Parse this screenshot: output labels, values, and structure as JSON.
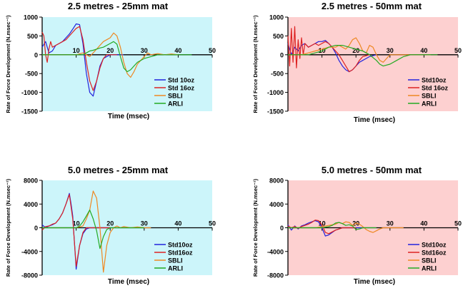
{
  "figure": {
    "ylabel": "Rate of Force Development (N.msec⁻¹)"
  },
  "chart_data": [
    {
      "type": "line",
      "title": "2.5 metres - 25mm mat",
      "xlabel": "Time (msec)",
      "ylabel": "Rate of Force Development (N.msec⁻¹)",
      "xlim": [
        0,
        50
      ],
      "ylim": [
        -1500,
        1000
      ],
      "xticks": [
        0,
        10,
        20,
        30,
        40,
        50
      ],
      "yticks": [
        -1500,
        -1000,
        -500,
        0,
        500,
        1000
      ],
      "background": "#ccf5fa",
      "legend_position": "bottom-right",
      "series": [
        {
          "name": "Std 10oz",
          "color": "#2222dd",
          "x": [
            0,
            1,
            2,
            3,
            4,
            5,
            6,
            7,
            8,
            9,
            10,
            11,
            12,
            13,
            14,
            15,
            16,
            17,
            18,
            19,
            20,
            22,
            24
          ],
          "y": [
            200,
            350,
            50,
            100,
            250,
            300,
            350,
            450,
            550,
            680,
            820,
            800,
            300,
            -500,
            -1000,
            -1100,
            -700,
            -300,
            -100,
            -50,
            0,
            0,
            0
          ]
        },
        {
          "name": "Std 16oz",
          "color": "#dd2222",
          "x": [
            0,
            0.5,
            1,
            1.5,
            2,
            2.5,
            3,
            4,
            5,
            6,
            7,
            8,
            9,
            10,
            11,
            12,
            13,
            14,
            15,
            16,
            17,
            18,
            19,
            20,
            22
          ],
          "y": [
            600,
            500,
            0,
            -200,
            150,
            350,
            200,
            250,
            300,
            350,
            400,
            500,
            600,
            700,
            750,
            400,
            -200,
            -700,
            -950,
            -700,
            -350,
            -100,
            0,
            0,
            0
          ]
        },
        {
          "name": "SBLI",
          "color": "#ee8822",
          "x": [
            0,
            2,
            4,
            6,
            8,
            10,
            12,
            13,
            14,
            15,
            16,
            17,
            18,
            19,
            20,
            21,
            22,
            23,
            24,
            25,
            26,
            27,
            28,
            29,
            30,
            31,
            32,
            34,
            36,
            38,
            40
          ],
          "y": [
            0,
            0,
            0,
            0,
            0,
            0,
            50,
            0,
            -50,
            50,
            150,
            250,
            350,
            400,
            450,
            580,
            500,
            200,
            -200,
            -500,
            -600,
            -450,
            -250,
            -150,
            -50,
            50,
            0,
            30,
            0,
            20,
            0
          ]
        },
        {
          "name": "ARLI",
          "color": "#22aa22",
          "x": [
            0,
            2,
            4,
            6,
            8,
            10,
            12,
            13,
            14,
            15,
            16,
            17,
            18,
            19,
            20,
            21,
            22,
            23,
            24,
            25,
            26,
            27,
            28,
            30,
            32,
            34,
            36,
            38,
            40,
            42,
            44
          ],
          "y": [
            0,
            0,
            0,
            0,
            0,
            0,
            0,
            50,
            100,
            120,
            150,
            180,
            200,
            250,
            300,
            350,
            280,
            -50,
            -350,
            -450,
            -400,
            -300,
            -200,
            -100,
            -50,
            0,
            0,
            0,
            0,
            0,
            0
          ]
        }
      ]
    },
    {
      "type": "line",
      "title": "2.5 metres - 50mm mat",
      "xlabel": "Time (msec)",
      "ylabel": "Rate of Force Development (N.msec⁻¹)",
      "xlim": [
        0,
        50
      ],
      "ylim": [
        -1500,
        1000
      ],
      "xticks": [
        0,
        10,
        20,
        30,
        40,
        50
      ],
      "yticks": [
        -1500,
        -1000,
        -500,
        0,
        500,
        1000
      ],
      "background": "#fdd0d0",
      "legend_position": "bottom-right",
      "series": [
        {
          "name": "Std10oz",
          "color": "#2222dd",
          "x": [
            0,
            1,
            2,
            3,
            4,
            5,
            6,
            7,
            8,
            9,
            10,
            11,
            12,
            13,
            14,
            15,
            16,
            17,
            18,
            19,
            20,
            21,
            22,
            24,
            26
          ],
          "y": [
            300,
            0,
            200,
            100,
            250,
            300,
            200,
            250,
            300,
            350,
            350,
            380,
            300,
            200,
            50,
            -150,
            -300,
            -400,
            -450,
            -400,
            -300,
            -200,
            -150,
            -50,
            0
          ]
        },
        {
          "name": "Std 16oz",
          "color": "#dd2222",
          "x": [
            0,
            0.5,
            1,
            1.5,
            2,
            2.5,
            3,
            3.5,
            4,
            4.5,
            5,
            6,
            7,
            8,
            9,
            10,
            11,
            12,
            13,
            14,
            15,
            16,
            17,
            18,
            19,
            20,
            21,
            22,
            24
          ],
          "y": [
            500,
            -300,
            700,
            -200,
            750,
            -350,
            400,
            -100,
            450,
            0,
            300,
            200,
            250,
            300,
            250,
            300,
            350,
            300,
            200,
            100,
            0,
            -150,
            -300,
            -450,
            -400,
            -300,
            -150,
            -50,
            0
          ]
        },
        {
          "name": "SBLI",
          "color": "#ee8822",
          "x": [
            0,
            2,
            4,
            6,
            8,
            10,
            12,
            14,
            15,
            16,
            17,
            18,
            19,
            20,
            21,
            22,
            23,
            24,
            25,
            26,
            27,
            28,
            29,
            30,
            32,
            34,
            36,
            38,
            40,
            42
          ],
          "y": [
            0,
            0,
            0,
            50,
            100,
            150,
            200,
            200,
            250,
            200,
            150,
            250,
            400,
            450,
            300,
            100,
            50,
            250,
            200,
            0,
            -150,
            -200,
            -100,
            0,
            0,
            0,
            0,
            0,
            0,
            0
          ]
        },
        {
          "name": "ARLI",
          "color": "#22aa22",
          "x": [
            0,
            2,
            4,
            6,
            8,
            10,
            12,
            14,
            16,
            18,
            20,
            22,
            24,
            26,
            27,
            28,
            30,
            32,
            34,
            36,
            38,
            40,
            42,
            44
          ],
          "y": [
            0,
            0,
            0,
            0,
            50,
            100,
            200,
            250,
            250,
            200,
            150,
            100,
            0,
            -150,
            -250,
            -300,
            -250,
            -150,
            -50,
            0,
            0,
            0,
            0,
            0
          ]
        }
      ]
    },
    {
      "type": "line",
      "title": "5.0 metres - 25mm mat",
      "xlabel": "Time (msec)",
      "ylabel": "Rate of Force Development (N.msec⁻¹)",
      "xlim": [
        0,
        50
      ],
      "ylim": [
        -8000,
        8000
      ],
      "xticks": [
        0,
        10,
        20,
        30,
        40,
        50
      ],
      "yticks": [
        -8000,
        -4000,
        0,
        4000,
        8000
      ],
      "background": "#ccf5fa",
      "legend_position": "bottom-right",
      "series": [
        {
          "name": "Std10oz",
          "color": "#2222dd",
          "x": [
            0,
            1,
            2,
            3,
            4,
            5,
            6,
            7,
            8,
            8.5,
            9,
            10,
            11,
            12,
            13,
            14,
            15,
            16,
            18,
            20
          ],
          "y": [
            500,
            0,
            300,
            500,
            800,
            1500,
            2500,
            4000,
            5800,
            4000,
            2000,
            -7000,
            -3000,
            -1000,
            -200,
            0,
            0,
            0,
            0,
            0
          ]
        },
        {
          "name": "Std16oz",
          "color": "#dd2222",
          "x": [
            0,
            1,
            2,
            3,
            4,
            5,
            6,
            7,
            8,
            8.5,
            9,
            10,
            11,
            12,
            13,
            14,
            15,
            16,
            18,
            20
          ],
          "y": [
            -400,
            200,
            300,
            600,
            800,
            1500,
            2500,
            4000,
            5600,
            3500,
            1500,
            -6500,
            -3000,
            -800,
            0,
            0,
            0,
            0,
            0,
            0
          ]
        },
        {
          "name": "SBLI",
          "color": "#ee8822",
          "x": [
            0,
            4,
            8,
            10,
            12,
            13,
            14,
            15,
            16,
            17,
            18,
            19,
            20,
            21,
            22,
            23,
            24,
            26,
            28,
            30,
            32
          ],
          "y": [
            0,
            0,
            0,
            0,
            300,
            1500,
            3000,
            6200,
            5000,
            0,
            -7500,
            -3000,
            -800,
            0,
            300,
            0,
            200,
            0,
            150,
            0,
            0
          ]
        },
        {
          "name": "ARLI",
          "color": "#22aa22",
          "x": [
            0,
            4,
            8,
            10,
            11,
            12,
            13,
            14,
            15,
            16,
            17,
            18,
            19,
            20,
            22,
            24,
            26,
            28,
            30
          ],
          "y": [
            0,
            0,
            0,
            0,
            300,
            1000,
            2000,
            3000,
            1500,
            -500,
            -3500,
            -1500,
            -300,
            0,
            0,
            0,
            0,
            0,
            0
          ]
        }
      ]
    },
    {
      "type": "line",
      "title": "5.0 metres - 50mm mat",
      "xlabel": "Time (msec)",
      "ylabel": "Rate of Force Development (N.msec⁻¹)",
      "xlim": [
        0,
        50
      ],
      "ylim": [
        -8000,
        8000
      ],
      "xticks": [
        0,
        10,
        20,
        30,
        40,
        50
      ],
      "yticks": [
        -8000,
        -4000,
        0,
        4000,
        8000
      ],
      "background": "#fdd0d0",
      "legend_position": "bottom-right",
      "series": [
        {
          "name": "Std10oz",
          "color": "#2222dd",
          "x": [
            0,
            1,
            2,
            3,
            4,
            5,
            6,
            7,
            8,
            9,
            10,
            11,
            12,
            13,
            14,
            15,
            16,
            18,
            20,
            22
          ],
          "y": [
            500,
            -400,
            300,
            -200,
            300,
            500,
            800,
            1000,
            1200,
            1000,
            0,
            -1400,
            -1200,
            -800,
            -400,
            -200,
            0,
            0,
            0,
            0
          ]
        },
        {
          "name": "Std16oz",
          "color": "#dd2222",
          "x": [
            0,
            1,
            2,
            3,
            4,
            5,
            6,
            7,
            8,
            9,
            10,
            11,
            12,
            13,
            14,
            15,
            16,
            18,
            20
          ],
          "y": [
            300,
            0,
            200,
            -100,
            200,
            400,
            600,
            900,
            1300,
            1200,
            500,
            -800,
            -1000,
            -700,
            -400,
            -200,
            0,
            0,
            0
          ]
        },
        {
          "name": "SBLI",
          "color": "#ee8822",
          "x": [
            0,
            4,
            8,
            10,
            12,
            14,
            15,
            16,
            17,
            18,
            19,
            20,
            21,
            22,
            23,
            24,
            25,
            26,
            27,
            28,
            30,
            32,
            34
          ],
          "y": [
            0,
            0,
            0,
            200,
            400,
            600,
            900,
            700,
            1000,
            900,
            400,
            800,
            600,
            200,
            -300,
            -600,
            -800,
            -500,
            -200,
            0,
            0,
            0,
            0
          ]
        },
        {
          "name": "ARLI",
          "color": "#22aa22",
          "x": [
            0,
            4,
            8,
            10,
            12,
            13,
            14,
            15,
            16,
            17,
            18,
            19,
            20,
            21,
            22,
            24,
            26
          ],
          "y": [
            0,
            0,
            0,
            0,
            200,
            400,
            800,
            900,
            700,
            400,
            500,
            300,
            -300,
            -200,
            0,
            0,
            0
          ]
        }
      ]
    }
  ]
}
